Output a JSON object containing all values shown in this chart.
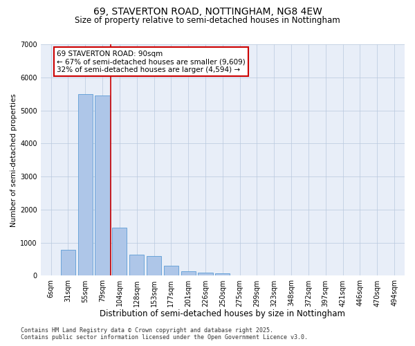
{
  "title_line1": "69, STAVERTON ROAD, NOTTINGHAM, NG8 4EW",
  "title_line2": "Size of property relative to semi-detached houses in Nottingham",
  "xlabel": "Distribution of semi-detached houses by size in Nottingham",
  "ylabel": "Number of semi-detached properties",
  "categories": [
    "6sqm",
    "31sqm",
    "55sqm",
    "79sqm",
    "104sqm",
    "128sqm",
    "153sqm",
    "177sqm",
    "201sqm",
    "226sqm",
    "250sqm",
    "275sqm",
    "299sqm",
    "323sqm",
    "348sqm",
    "372sqm",
    "397sqm",
    "421sqm",
    "446sqm",
    "470sqm",
    "494sqm"
  ],
  "values": [
    20,
    780,
    5500,
    5450,
    1450,
    630,
    590,
    300,
    140,
    90,
    70,
    20,
    0,
    0,
    0,
    0,
    0,
    0,
    0,
    0,
    0
  ],
  "bar_color": "#aec6e8",
  "bar_edge_color": "#5b9bd5",
  "property_line_x": 3.5,
  "annotation_title": "69 STAVERTON ROAD: 90sqm",
  "annotation_line2": "← 67% of semi-detached houses are smaller (9,609)",
  "annotation_line3": "32% of semi-detached houses are larger (4,594) →",
  "annotation_box_color": "#ffffff",
  "annotation_box_edge": "#cc0000",
  "vline_color": "#cc0000",
  "ylim": [
    0,
    7000
  ],
  "yticks": [
    0,
    1000,
    2000,
    3000,
    4000,
    5000,
    6000,
    7000
  ],
  "plot_bg_color": "#e8eef8",
  "footer_line1": "Contains HM Land Registry data © Crown copyright and database right 2025.",
  "footer_line2": "Contains public sector information licensed under the Open Government Licence v3.0.",
  "title_fontsize": 10,
  "subtitle_fontsize": 8.5,
  "xlabel_fontsize": 8.5,
  "ylabel_fontsize": 7.5,
  "tick_fontsize": 7,
  "footer_fontsize": 6,
  "annotation_fontsize": 7.5
}
